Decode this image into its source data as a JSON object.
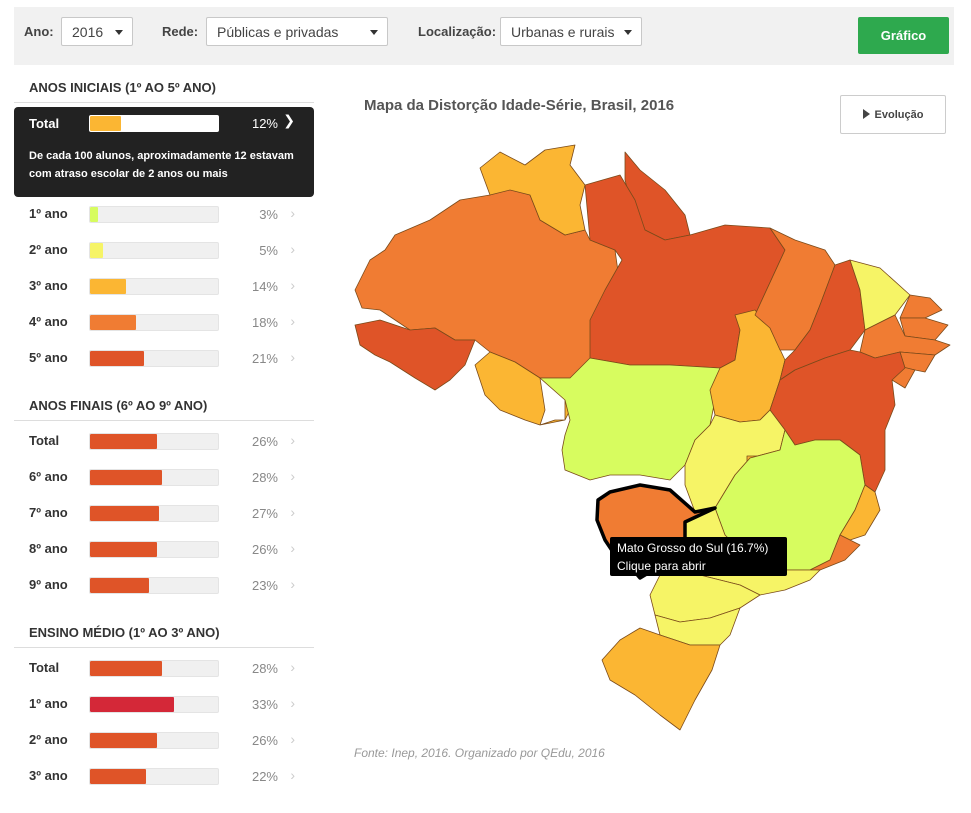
{
  "filters": {
    "ano_label": "Ano:",
    "ano_value": "2016",
    "rede_label": "Rede:",
    "rede_value": "Públicas e privadas",
    "local_label": "Localização:",
    "local_value": "Urbanas e rurais",
    "grafico_button": "Gráfico"
  },
  "colors": {
    "scale": [
      "#d7fc5f",
      "#f6f466",
      "#fbb633",
      "#f07c33",
      "#df5428",
      "#d42838"
    ],
    "button_green": "#2ea94e"
  },
  "sections": [
    {
      "title": "ANOS INICIAIS (1º AO 5º ANO)",
      "rows": [
        {
          "label": "Total",
          "pct": 12,
          "pct_text": "12%",
          "color": "#fbb633",
          "active": true,
          "description": "De cada 100 alunos, aproximadamente 12 estavam com atraso escolar de 2 anos ou mais"
        },
        {
          "label": "1º ano",
          "pct": 3,
          "pct_text": "3%",
          "color": "#d7fc5f"
        },
        {
          "label": "2º ano",
          "pct": 5,
          "pct_text": "5%",
          "color": "#f6f466"
        },
        {
          "label": "3º ano",
          "pct": 14,
          "pct_text": "14%",
          "color": "#fbb633"
        },
        {
          "label": "4º ano",
          "pct": 18,
          "pct_text": "18%",
          "color": "#f07c33"
        },
        {
          "label": "5º ano",
          "pct": 21,
          "pct_text": "21%",
          "color": "#df5428"
        }
      ]
    },
    {
      "title": "ANOS FINAIS (6º AO 9º ANO)",
      "rows": [
        {
          "label": "Total",
          "pct": 26,
          "pct_text": "26%",
          "color": "#df5428"
        },
        {
          "label": "6º ano",
          "pct": 28,
          "pct_text": "28%",
          "color": "#df5428"
        },
        {
          "label": "7º ano",
          "pct": 27,
          "pct_text": "27%",
          "color": "#df5428"
        },
        {
          "label": "8º ano",
          "pct": 26,
          "pct_text": "26%",
          "color": "#df5428"
        },
        {
          "label": "9º ano",
          "pct": 23,
          "pct_text": "23%",
          "color": "#df5428"
        }
      ]
    },
    {
      "title": "ENSINO MÉDIO (1º AO 3º ANO)",
      "rows": [
        {
          "label": "Total",
          "pct": 28,
          "pct_text": "28%",
          "color": "#df5428"
        },
        {
          "label": "1º ano",
          "pct": 33,
          "pct_text": "33%",
          "color": "#d42838"
        },
        {
          "label": "2º ano",
          "pct": 26,
          "pct_text": "26%",
          "color": "#df5428"
        },
        {
          "label": "3º ano",
          "pct": 22,
          "pct_text": "22%",
          "color": "#df5428"
        }
      ]
    }
  ],
  "map": {
    "title": "Mapa da Distorção Idade-Série, Brasil, 2016",
    "evolucao_button": "Evolução",
    "tooltip_line1": "Mato Grosso do Sul (16.7%)",
    "tooltip_line2": "Clique para abrir",
    "source": "Fonte: Inep, 2016. Organizado por QEdu, 2016",
    "states": [
      {
        "id": "AM",
        "color": "#f07c33"
      },
      {
        "id": "RR",
        "color": "#fbb633"
      },
      {
        "id": "AP",
        "color": "#df5428"
      },
      {
        "id": "PA",
        "color": "#df5428"
      },
      {
        "id": "AC",
        "color": "#df5428"
      },
      {
        "id": "RO",
        "color": "#fbb633"
      },
      {
        "id": "MT",
        "color": "#d7fc5f"
      },
      {
        "id": "TO",
        "color": "#fbb633"
      },
      {
        "id": "MA",
        "color": "#f07c33"
      },
      {
        "id": "PI",
        "color": "#df5428"
      },
      {
        "id": "CE",
        "color": "#f6f466"
      },
      {
        "id": "RN",
        "color": "#f07c33"
      },
      {
        "id": "PB",
        "color": "#f07c33"
      },
      {
        "id": "PE",
        "color": "#f07c33"
      },
      {
        "id": "AL",
        "color": "#f07c33"
      },
      {
        "id": "SE",
        "color": "#f07c33"
      },
      {
        "id": "BA",
        "color": "#df5428"
      },
      {
        "id": "GO",
        "color": "#f6f466"
      },
      {
        "id": "DF",
        "color": "#fbb633"
      },
      {
        "id": "MG",
        "color": "#d7fc5f"
      },
      {
        "id": "ES",
        "color": "#fbb633"
      },
      {
        "id": "RJ",
        "color": "#f07c33"
      },
      {
        "id": "SP",
        "color": "#f6f466"
      },
      {
        "id": "MS",
        "color": "#f07c33"
      },
      {
        "id": "PR",
        "color": "#f6f466"
      },
      {
        "id": "SC",
        "color": "#f6f466"
      },
      {
        "id": "RS",
        "color": "#fbb633"
      }
    ]
  }
}
